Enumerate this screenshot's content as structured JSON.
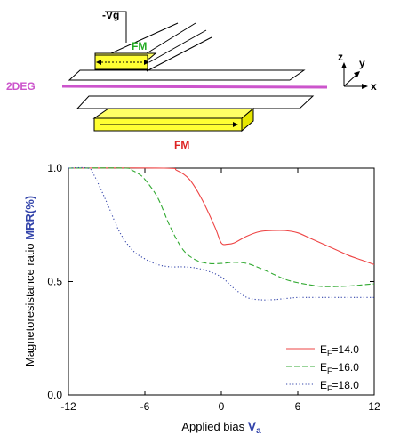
{
  "schematic": {
    "gate_label": "-Vg",
    "top_fm_label": "FM",
    "bottom_fm_label": "FM",
    "twodeg_label": "2DEG",
    "axes": {
      "z": "z",
      "y": "y",
      "x": "x"
    },
    "colors": {
      "fm_fill": "#ffff33",
      "top_fm_text": "#22aa22",
      "bottom_fm_text": "#dd2222",
      "twodeg": "#cc55cc",
      "outline": "#000000"
    }
  },
  "chart_data": {
    "type": "line",
    "xlabel_text": "Applied bias ",
    "xlabel_var": "V",
    "xlabel_sub": "a",
    "ylabel_text": "Magnetoresistance ratio ",
    "ylabel_var": "MRR(%)",
    "xlim": [
      -12,
      12
    ],
    "ylim": [
      0.0,
      1.0
    ],
    "x_ticks": [
      -12,
      -6,
      0,
      6,
      12
    ],
    "x_tick_labels": [
      "-12",
      "-6",
      "0",
      "6",
      "12"
    ],
    "y_ticks": [
      0.0,
      0.5,
      1.0
    ],
    "y_tick_labels": [
      "0.0",
      "0.5",
      "1.0"
    ],
    "grid": false,
    "legend_position": "bottom-right",
    "series": [
      {
        "name_pre": "E",
        "name_sub": "F",
        "name_post": "=14.0",
        "color": "#ee4444",
        "dash": "solid",
        "x": [
          -12,
          -4.5,
          -3.5,
          -2.5,
          -1.5,
          -0.5,
          0,
          0.5,
          1,
          2,
          3,
          4,
          5,
          6,
          7,
          8,
          9,
          10,
          11,
          12
        ],
        "y": [
          1.0,
          1.0,
          0.99,
          0.95,
          0.86,
          0.74,
          0.67,
          0.665,
          0.67,
          0.7,
          0.72,
          0.725,
          0.725,
          0.715,
          0.69,
          0.665,
          0.64,
          0.615,
          0.595,
          0.575
        ]
      },
      {
        "name_pre": "E",
        "name_sub": "F",
        "name_post": "=16.0",
        "color": "#33aa33",
        "dash": "dashed",
        "x": [
          -12,
          -7.5,
          -7,
          -6.5,
          -6,
          -5,
          -4,
          -3,
          -2,
          -1,
          0,
          1,
          2,
          3,
          4,
          5,
          6,
          7,
          8,
          9,
          10,
          11,
          12
        ],
        "y": [
          1.0,
          1.0,
          0.99,
          0.975,
          0.95,
          0.87,
          0.74,
          0.64,
          0.595,
          0.58,
          0.58,
          0.585,
          0.58,
          0.56,
          0.535,
          0.51,
          0.495,
          0.485,
          0.478,
          0.478,
          0.48,
          0.485,
          0.49
        ]
      },
      {
        "name_pre": "E",
        "name_sub": "F",
        "name_post": "=18.0",
        "color": "#3344aa",
        "dash": "dotted",
        "x": [
          -12,
          -10.5,
          -10,
          -9,
          -8,
          -7,
          -6,
          -5,
          -4,
          -3,
          -2,
          -1,
          0,
          1,
          2,
          3,
          4,
          5,
          6,
          7,
          8,
          9,
          10,
          11,
          12
        ],
        "y": [
          1.0,
          1.0,
          0.97,
          0.85,
          0.72,
          0.64,
          0.6,
          0.575,
          0.565,
          0.565,
          0.56,
          0.545,
          0.52,
          0.47,
          0.43,
          0.42,
          0.42,
          0.425,
          0.43,
          0.43,
          0.43,
          0.43,
          0.43,
          0.43,
          0.43
        ]
      }
    ]
  }
}
